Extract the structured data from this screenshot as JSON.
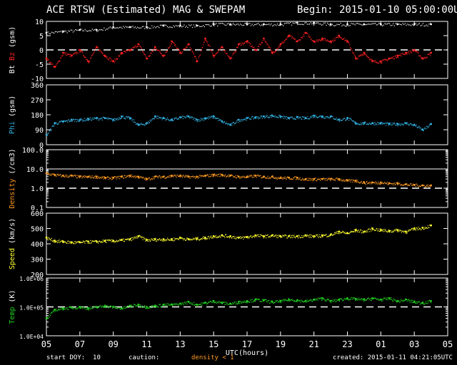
{
  "header": {
    "title": "ACE RTSW (Estimated) MAG & SWEPAM",
    "begin": "Begin: 2015-01-10 05:00:00UTC"
  },
  "footer": {
    "start_doy": "start DOY:  10",
    "caution": "caution:",
    "density_caution": "density < 1",
    "created": "created: 2015-01-11 04:21:05UTC"
  },
  "colors": {
    "bt": "#ffffff",
    "bz": "#ff2020",
    "phi": "#30b0e0",
    "density": "#ff9a20",
    "speed": "#ffff30",
    "temp": "#20d020",
    "frame": "#ffffff",
    "dashed": "#ffffff"
  },
  "chart_data": [
    {
      "type": "scatter",
      "ylabel": "Bt  Bz  (gsm)",
      "ylabel_parts": [
        "Bt",
        "Bz",
        "(gsm)"
      ],
      "ylim": [
        -10,
        10
      ],
      "yticks": [
        -10,
        -5,
        0,
        5,
        10
      ],
      "ytick_labels": [
        "-10",
        "-5",
        "0",
        "5",
        "10"
      ],
      "dashed_at": 0,
      "scale": "linear",
      "series": [
        {
          "name": "Bt",
          "color": "#ffffff",
          "x": [
            0,
            1,
            2,
            3,
            4,
            5,
            6,
            7,
            8,
            9,
            10,
            11,
            12,
            13,
            14,
            15,
            16,
            17,
            18,
            19,
            20,
            21,
            22,
            23
          ],
          "y": [
            6,
            6.5,
            7,
            7,
            8,
            8,
            8,
            8.5,
            8.5,
            8.5,
            9,
            9,
            9,
            9,
            9,
            9.5,
            9.5,
            9,
            9,
            9,
            9,
            9,
            9,
            9
          ]
        },
        {
          "name": "Bz",
          "color": "#ff2020",
          "x": [
            0,
            0.5,
            1,
            1.5,
            2,
            2.5,
            3,
            3.5,
            4,
            4.5,
            5,
            5.5,
            6,
            6.5,
            7,
            7.5,
            8,
            8.5,
            9,
            9.5,
            10,
            10.5,
            11,
            11.5,
            12,
            12.5,
            13,
            13.5,
            14,
            14.5,
            15,
            15.5,
            16,
            16.5,
            17,
            17.5,
            18,
            18.5,
            19,
            19.5,
            20,
            20.5,
            21,
            21.5,
            22,
            22.5,
            23
          ],
          "y": [
            -3,
            -6,
            -1,
            -2,
            0,
            -4,
            1,
            -2,
            -4,
            -1,
            0,
            2,
            -3,
            1,
            -2,
            3,
            -1,
            2,
            -4,
            4,
            -2,
            1,
            -3,
            2,
            3,
            0,
            4,
            -1,
            2,
            5,
            3,
            6,
            3,
            4,
            3,
            5,
            3,
            -3,
            -1,
            -4,
            -4,
            -3,
            -2,
            -1,
            0,
            -3,
            -1
          ]
        }
      ]
    },
    {
      "type": "scatter",
      "ylabel": "Phi  (gsm)",
      "ylabel_parts": [
        "Phi",
        "(gsm)"
      ],
      "ylim": [
        0,
        360
      ],
      "yticks": [
        0,
        90,
        180,
        270,
        360
      ],
      "ytick_labels": [
        "0",
        "90",
        "180",
        "270",
        "360"
      ],
      "scale": "linear",
      "series": [
        {
          "name": "Phi",
          "color": "#30b0e0",
          "x": [
            0,
            0.5,
            1,
            1.5,
            2,
            2.5,
            3,
            3.5,
            4,
            4.5,
            5,
            5.5,
            6,
            6.5,
            7,
            7.5,
            8,
            8.5,
            9,
            9.5,
            10,
            10.5,
            11,
            11.5,
            12,
            12.5,
            13,
            13.5,
            14,
            14.5,
            15,
            15.5,
            16,
            16.5,
            17,
            17.5,
            18,
            18.5,
            19,
            19.5,
            20,
            20.5,
            21,
            21.5,
            22,
            22.5,
            23
          ],
          "y": [
            60,
            130,
            140,
            150,
            150,
            155,
            160,
            160,
            150,
            170,
            160,
            120,
            130,
            170,
            160,
            150,
            165,
            170,
            150,
            160,
            170,
            140,
            120,
            150,
            160,
            165,
            170,
            175,
            170,
            160,
            165,
            160,
            175,
            170,
            170,
            150,
            160,
            130,
            130,
            130,
            130,
            125,
            125,
            130,
            120,
            90,
            125
          ]
        }
      ]
    },
    {
      "type": "scatter",
      "ylabel": "Density  (/cm3)",
      "ylabel_parts": [
        "Density",
        "(/cm3)"
      ],
      "ylim": [
        0.1,
        100
      ],
      "yticks": [
        0.1,
        1,
        10,
        100
      ],
      "ytick_labels": [
        "0.1",
        "1.0",
        "10.0",
        "100.0"
      ],
      "dashed_at": 1,
      "solid_at": 10,
      "scale": "log",
      "series": [
        {
          "name": "Density",
          "color": "#ff9a20",
          "x": [
            0,
            0.5,
            1,
            1.5,
            2,
            2.5,
            3,
            3.5,
            4,
            4.5,
            5,
            5.5,
            6,
            6.5,
            7,
            7.5,
            8,
            8.5,
            9,
            9.5,
            10,
            10.5,
            11,
            11.5,
            12,
            12.5,
            13,
            13.5,
            14,
            14.5,
            15,
            15.5,
            16,
            16.5,
            17,
            17.5,
            18,
            18.5,
            19,
            19.5,
            20,
            20.5,
            21,
            21.5,
            22,
            22.5,
            23
          ],
          "y": [
            6,
            5,
            4.5,
            4.5,
            4,
            4,
            4,
            3.5,
            3.5,
            4,
            4.5,
            4,
            3,
            4,
            4,
            4.5,
            4.5,
            4,
            4,
            4.5,
            5,
            5,
            4.5,
            4,
            4,
            4.5,
            4,
            4,
            3.5,
            3.5,
            3.5,
            3,
            3,
            3,
            3,
            3,
            2.5,
            2.5,
            2,
            2,
            2,
            1.8,
            1.8,
            1.6,
            1.5,
            1.4,
            1.4
          ]
        }
      ]
    },
    {
      "type": "scatter",
      "ylabel": "Speed  (km/s)",
      "ylabel_parts": [
        "Speed",
        "(km/s)"
      ],
      "ylim": [
        200,
        600
      ],
      "yticks": [
        200,
        300,
        400,
        500,
        600
      ],
      "ytick_labels": [
        "200",
        "300",
        "400",
        "500",
        "600"
      ],
      "scale": "linear",
      "series": [
        {
          "name": "Speed",
          "color": "#ffff30",
          "x": [
            0,
            0.5,
            1,
            1.5,
            2,
            2.5,
            3,
            3.5,
            4,
            4.5,
            5,
            5.5,
            6,
            6.5,
            7,
            7.5,
            8,
            8.5,
            9,
            9.5,
            10,
            10.5,
            11,
            11.5,
            12,
            12.5,
            13,
            13.5,
            14,
            14.5,
            15,
            15.5,
            16,
            16.5,
            17,
            17.5,
            18,
            18.5,
            19,
            19.5,
            20,
            20.5,
            21,
            21.5,
            22,
            22.5,
            23
          ],
          "y": [
            440,
            420,
            415,
            410,
            410,
            415,
            415,
            420,
            420,
            425,
            430,
            450,
            425,
            430,
            430,
            430,
            440,
            430,
            435,
            440,
            450,
            455,
            450,
            440,
            445,
            455,
            450,
            455,
            450,
            450,
            450,
            455,
            450,
            455,
            460,
            480,
            470,
            490,
            480,
            500,
            490,
            485,
            490,
            480,
            500,
            505,
            520
          ]
        }
      ]
    },
    {
      "type": "scatter",
      "ylabel": "Temp  (K)",
      "ylabel_parts": [
        "Temp",
        "(K)"
      ],
      "ylim": [
        10000,
        1000000
      ],
      "yticks": [
        10000,
        100000,
        1000000
      ],
      "ytick_labels": [
        "1.0E+04",
        "1.0E+05",
        "1.0E+06"
      ],
      "dashed_at": 100000,
      "scale": "log",
      "series": [
        {
          "name": "Temp",
          "color": "#20d020",
          "x": [
            0,
            0.5,
            1,
            1.5,
            2,
            2.5,
            3,
            3.5,
            4,
            4.5,
            5,
            5.5,
            6,
            6.5,
            7,
            7.5,
            8,
            8.5,
            9,
            9.5,
            10,
            10.5,
            11,
            11.5,
            12,
            12.5,
            13,
            13.5,
            14,
            14.5,
            15,
            15.5,
            16,
            16.5,
            17,
            17.5,
            18,
            18.5,
            19,
            19.5,
            20,
            20.5,
            21,
            21.5,
            22,
            22.5,
            23
          ],
          "y": [
            40000,
            80000,
            90000,
            95000,
            100000,
            90000,
            100000,
            110000,
            100000,
            90000,
            110000,
            120000,
            100000,
            110000,
            120000,
            120000,
            130000,
            150000,
            120000,
            140000,
            160000,
            140000,
            130000,
            150000,
            160000,
            180000,
            170000,
            150000,
            160000,
            180000,
            170000,
            160000,
            180000,
            200000,
            160000,
            180000,
            200000,
            190000,
            180000,
            200000,
            180000,
            200000,
            160000,
            180000,
            150000,
            140000,
            160000
          ]
        }
      ]
    }
  ],
  "xaxis": {
    "label": "UTC(hours)",
    "ticks": [
      "05",
      "07",
      "09",
      "11",
      "13",
      "15",
      "17",
      "19",
      "21",
      "23",
      "01",
      "03",
      "05"
    ],
    "xlim": [
      0,
      24
    ]
  }
}
